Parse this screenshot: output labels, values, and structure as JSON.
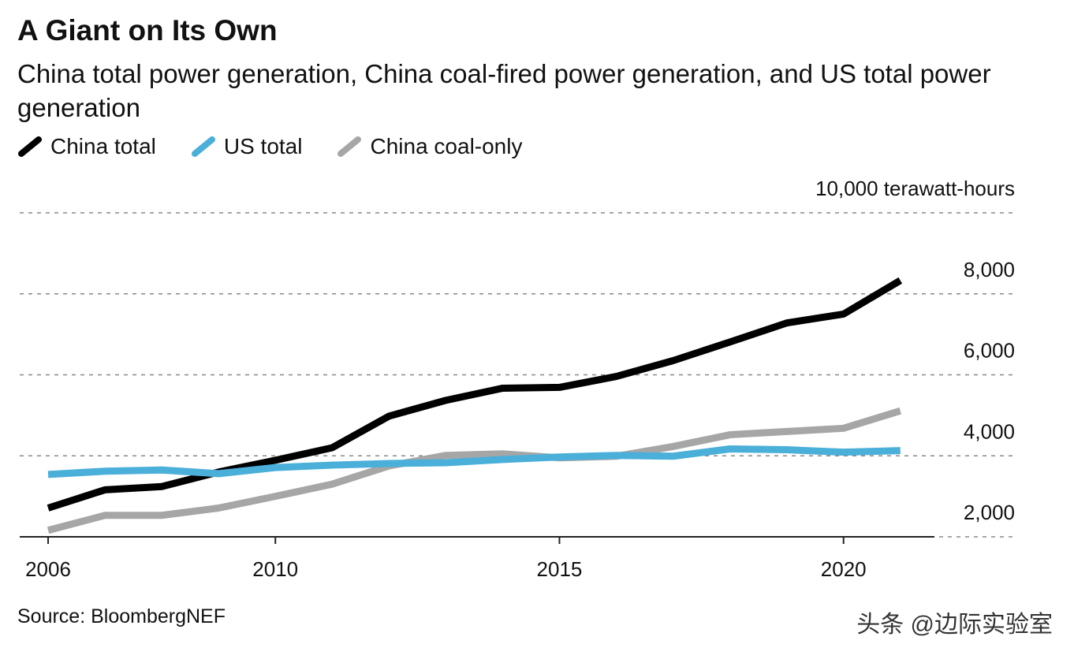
{
  "chart_data": {
    "type": "line",
    "title": "A Giant on Its Own",
    "subtitle": "China total power generation, China coal-fired power generation, and US total power generation",
    "x": [
      2006,
      2007,
      2008,
      2009,
      2010,
      2011,
      2012,
      2013,
      2014,
      2015,
      2016,
      2017,
      2018,
      2019,
      2020,
      2021
    ],
    "series": [
      {
        "name": "China total",
        "color": "#000000",
        "values": [
          2710,
          3160,
          3240,
          3600,
          3890,
          4200,
          4980,
          5370,
          5670,
          5690,
          5960,
          6350,
          6810,
          7280,
          7500,
          8330
        ]
      },
      {
        "name": "US total",
        "color": "#4aafd9",
        "values": [
          3540,
          3620,
          3650,
          3560,
          3710,
          3770,
          3810,
          3830,
          3910,
          3970,
          4010,
          3990,
          4170,
          4150,
          4090,
          4130
        ]
      },
      {
        "name": "China coal-only",
        "color": "#a6a6a6",
        "values": [
          2160,
          2530,
          2530,
          2710,
          3000,
          3300,
          3750,
          4010,
          4050,
          3950,
          3990,
          4230,
          4520,
          4600,
          4680,
          5110
        ]
      }
    ],
    "xlim": [
      2005.5,
      2021.6
    ],
    "xticks": [
      2006,
      2010,
      2015,
      2020
    ],
    "ylim": [
      2000,
      10000
    ],
    "yticks": [
      {
        "value": 2000,
        "label": "2,000"
      },
      {
        "value": 4000,
        "label": "4,000"
      },
      {
        "value": 6000,
        "label": "6,000"
      },
      {
        "value": 8000,
        "label": "8,000"
      },
      {
        "value": 10000,
        "label": "10,000 terawatt-hours"
      }
    ],
    "grid": true,
    "source": "Source: BloombergNEF",
    "watermark": "头条 @边际实验室"
  }
}
